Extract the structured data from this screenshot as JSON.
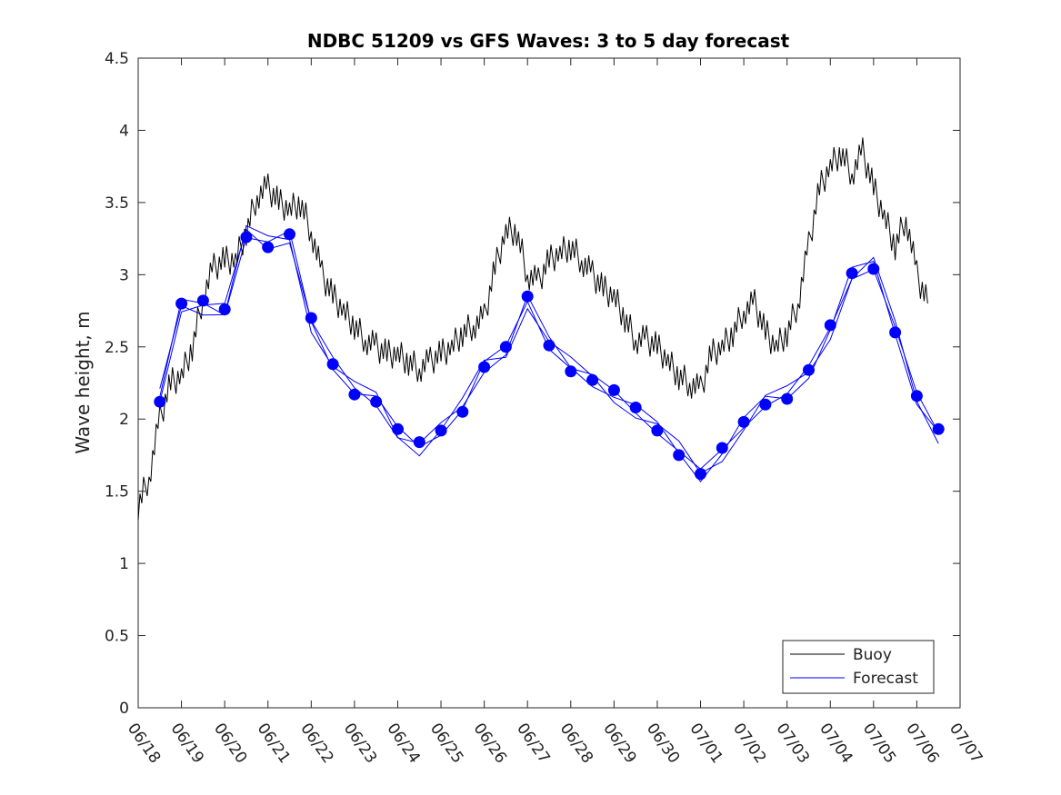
{
  "chart_data": {
    "type": "line",
    "title": "NDBC 51209 vs GFS Waves: 3 to 5 day forecast",
    "xlabel": "",
    "ylabel": "Wave height, m",
    "xlim": [
      "06/18",
      "07/07"
    ],
    "ylim": [
      0,
      4.5
    ],
    "x_ticks": [
      "06/18",
      "06/19",
      "06/20",
      "06/21",
      "06/22",
      "06/23",
      "06/24",
      "06/25",
      "06/26",
      "06/27",
      "06/28",
      "06/29",
      "06/30",
      "07/01",
      "07/02",
      "07/03",
      "07/04",
      "07/05",
      "07/06",
      "07/07"
    ],
    "y_ticks": [
      "0",
      "0.5",
      "1",
      "1.5",
      "2",
      "2.5",
      "3",
      "3.5",
      "4",
      "4.5"
    ],
    "grid": false,
    "legend_position": "bottom-right",
    "colors": {
      "buoy": "#000000",
      "forecast": "#0000ff"
    },
    "series": [
      {
        "name": "Buoy",
        "style": "line",
        "x": [
          "06/18 00:00",
          "06/18 06:00",
          "06/18 12:00",
          "06/18 18:00",
          "06/19 00:00",
          "06/19 06:00",
          "06/19 12:00",
          "06/19 18:00",
          "06/20 00:00",
          "06/20 06:00",
          "06/20 12:00",
          "06/20 18:00",
          "06/21 00:00",
          "06/21 06:00",
          "06/21 12:00",
          "06/21 18:00",
          "06/22 00:00",
          "06/22 06:00",
          "06/22 12:00",
          "06/22 18:00",
          "06/23 00:00",
          "06/23 06:00",
          "06/23 12:00",
          "06/23 18:00",
          "06/24 00:00",
          "06/24 06:00",
          "06/24 12:00",
          "06/24 18:00",
          "06/25 00:00",
          "06/25 06:00",
          "06/25 12:00",
          "06/25 18:00",
          "06/26 00:00",
          "06/26 06:00",
          "06/26 12:00",
          "06/26 18:00",
          "06/27 00:00",
          "06/27 06:00",
          "06/27 12:00",
          "06/27 18:00",
          "06/28 00:00",
          "06/28 06:00",
          "06/28 12:00",
          "06/28 18:00",
          "06/29 00:00",
          "06/29 06:00",
          "06/29 12:00",
          "06/29 18:00",
          "06/30 00:00",
          "06/30 06:00",
          "06/30 12:00",
          "06/30 18:00",
          "07/01 00:00",
          "07/01 06:00",
          "07/01 12:00",
          "07/01 18:00",
          "07/02 00:00",
          "07/02 06:00",
          "07/02 12:00",
          "07/02 18:00",
          "07/03 00:00",
          "07/03 06:00",
          "07/03 12:00",
          "07/03 18:00",
          "07/04 00:00",
          "07/04 06:00",
          "07/04 12:00",
          "07/04 18:00",
          "07/05 00:00",
          "07/05 06:00",
          "07/05 12:00",
          "07/05 18:00",
          "07/06 00:00",
          "07/06 06:00"
        ],
        "values": [
          1.4,
          1.6,
          2.0,
          2.25,
          2.3,
          2.5,
          2.85,
          3.05,
          3.1,
          3.1,
          3.3,
          3.55,
          3.6,
          3.5,
          3.45,
          3.5,
          3.3,
          3.0,
          2.85,
          2.75,
          2.65,
          2.55,
          2.5,
          2.45,
          2.45,
          2.4,
          2.35,
          2.4,
          2.45,
          2.5,
          2.6,
          2.65,
          2.7,
          3.05,
          3.3,
          3.3,
          3.0,
          2.95,
          3.1,
          3.15,
          3.2,
          3.1,
          3.0,
          2.9,
          2.85,
          2.7,
          2.55,
          2.55,
          2.5,
          2.4,
          2.3,
          2.25,
          2.2,
          2.45,
          2.5,
          2.6,
          2.75,
          2.8,
          2.6,
          2.5,
          2.6,
          2.8,
          3.2,
          3.6,
          3.75,
          3.85,
          3.7,
          3.85,
          3.6,
          3.4,
          3.2,
          3.4,
          3.0,
          2.8
        ]
      },
      {
        "name": "Forecast",
        "style": "markers",
        "x": [
          "06/18 12:00",
          "06/19 00:00",
          "06/19 12:00",
          "06/20 00:00",
          "06/20 12:00",
          "06/21 00:00",
          "06/21 12:00",
          "06/22 00:00",
          "06/22 12:00",
          "06/23 00:00",
          "06/23 12:00",
          "06/24 00:00",
          "06/24 12:00",
          "06/25 00:00",
          "06/25 12:00",
          "06/26 00:00",
          "06/26 12:00",
          "06/27 00:00",
          "06/27 12:00",
          "06/28 00:00",
          "06/28 12:00",
          "06/29 00:00",
          "06/29 12:00",
          "06/30 00:00",
          "06/30 12:00",
          "07/01 00:00",
          "07/01 12:00",
          "07/02 00:00",
          "07/02 12:00",
          "07/03 00:00",
          "07/03 12:00",
          "07/04 00:00",
          "07/04 12:00",
          "07/05 00:00",
          "07/05 12:00",
          "07/06 00:00",
          "07/06 12:00"
        ],
        "values": [
          2.12,
          2.8,
          2.82,
          2.76,
          3.26,
          3.19,
          3.28,
          2.7,
          2.38,
          2.17,
          2.12,
          1.93,
          1.84,
          1.92,
          2.05,
          2.36,
          2.5,
          2.85,
          2.51,
          2.33,
          2.27,
          2.2,
          2.08,
          1.92,
          1.75,
          1.62,
          1.8,
          1.98,
          2.1,
          2.14,
          2.34,
          2.65,
          3.01,
          3.04,
          2.6,
          2.16,
          1.93
        ]
      }
    ]
  }
}
